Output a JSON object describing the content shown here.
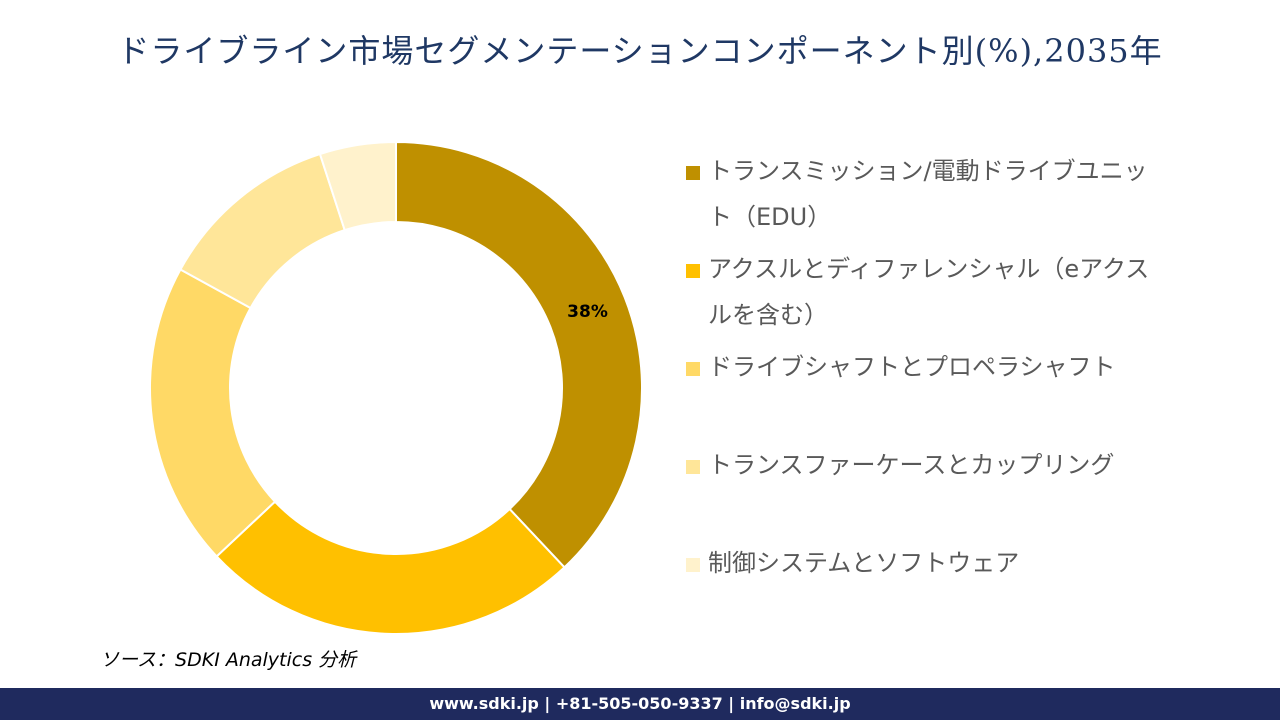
{
  "chart_data": {
    "type": "donut",
    "title": "ドライブライン市場セグメンテーションコンポーネント別(%),2035年",
    "categories": [
      "トランスミッション/電動ドライブユニット（EDU）",
      "アクスルとディファレンシャル（eアクスルを含む）",
      "ドライブシャフトとプロペラシャフト",
      "トランスファーケースとカップリング",
      "制御システムとソフトウェア"
    ],
    "values": [
      38,
      25,
      20,
      12,
      5
    ],
    "value_labels": [
      "38%",
      null,
      null,
      null,
      null
    ],
    "colors": [
      "#bf9000",
      "#ffc000",
      "#ffd966",
      "#ffe699",
      "#fff2cc"
    ],
    "legend": "right",
    "source": "ソース：SDKI Analytics 分析",
    "footer": "www.sdki.jp | +81-505-050-9337 | info@sdki.jp"
  }
}
